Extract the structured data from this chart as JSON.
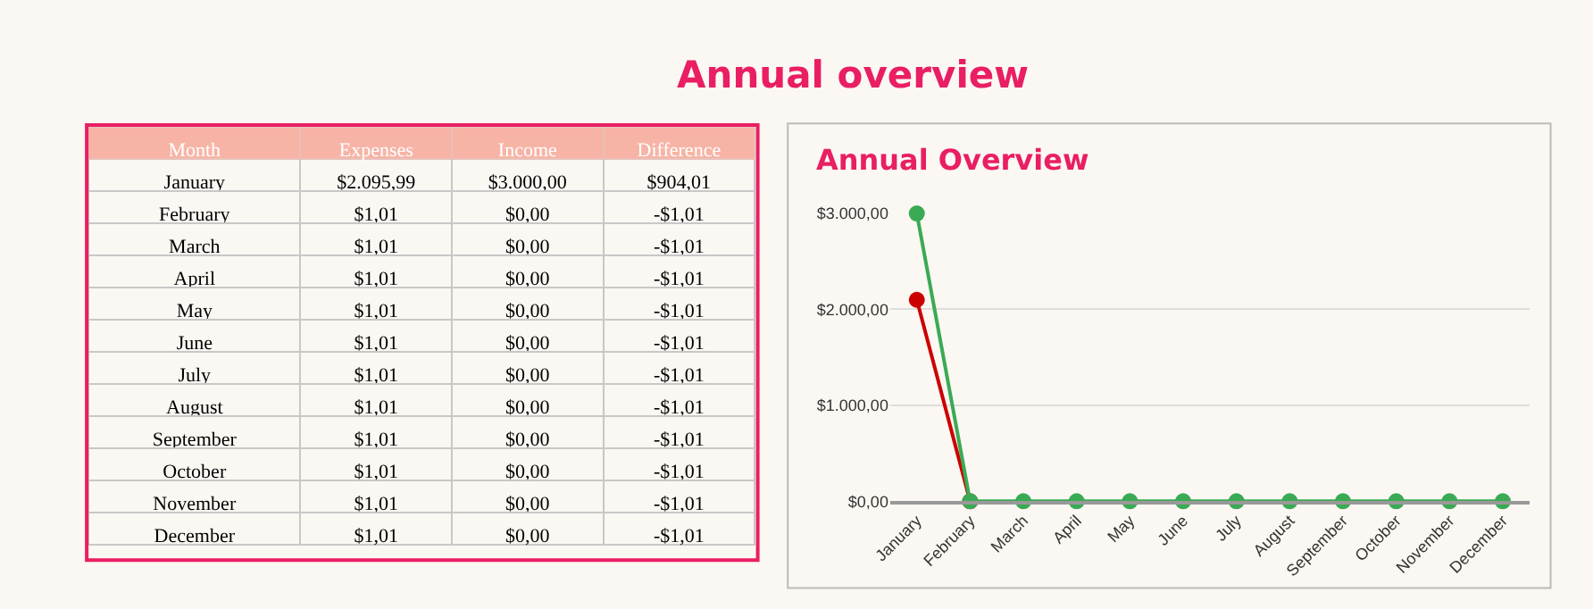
{
  "chart_data": [
    {
      "type": "other",
      "title": "Annual overview",
      "xlabel": "Month",
      "categories": [
        "January",
        "February",
        "March",
        "April",
        "May",
        "June",
        "July",
        "August",
        "September",
        "October",
        "November",
        "December"
      ],
      "series": [
        {
          "name": "Expenses",
          "values": [
            2095.99,
            1.01,
            1.01,
            1.01,
            1.01,
            1.01,
            1.01,
            1.01,
            1.01,
            1.01,
            1.01,
            1.01
          ],
          "value_labels": [
            "$2.095,99",
            "$1,01",
            "$1,01",
            "$1,01",
            "$1,01",
            "$1,01",
            "$1,01",
            "$1,01",
            "$1,01",
            "$1,01",
            "$1,01",
            "$1,01"
          ]
        },
        {
          "name": "Income",
          "values": [
            3000,
            0,
            0,
            0,
            0,
            0,
            0,
            0,
            0,
            0,
            0,
            0
          ],
          "value_labels": [
            "$3.000,00",
            "$0,00",
            "$0,00",
            "$0,00",
            "$0,00",
            "$0,00",
            "$0,00",
            "$0,00",
            "$0,00",
            "$0,00",
            "$0,00",
            "$0,00"
          ]
        },
        {
          "name": "Difference",
          "values": [
            904.01,
            -1.01,
            -1.01,
            -1.01,
            -1.01,
            -1.01,
            -1.01,
            -1.01,
            -1.01,
            -1.01,
            -1.01,
            -1.01
          ],
          "value_labels": [
            "$904,01",
            "-$1,01",
            "-$1,01",
            "-$1,01",
            "-$1,01",
            "-$1,01",
            "-$1,01",
            "-$1,01",
            "-$1,01",
            "-$1,01",
            "-$1,01",
            "-$1,01"
          ]
        }
      ]
    },
    {
      "type": "line",
      "title": "Annual Overview",
      "categories": [
        "January",
        "February",
        "March",
        "April",
        "May",
        "June",
        "July",
        "August",
        "September",
        "October",
        "November",
        "December"
      ],
      "series": [
        {
          "color": "#cc0000",
          "values": [
            2100,
            0,
            null,
            null,
            null,
            null,
            null,
            null,
            null,
            null,
            null,
            null
          ]
        },
        {
          "color": "#3aaa55",
          "values": [
            3000,
            0,
            0,
            0,
            0,
            0,
            0,
            0,
            0,
            0,
            0,
            0
          ]
        }
      ],
      "ylim": [
        0,
        3000
      ],
      "yticks": [
        {
          "value": 0,
          "label": "$0,00"
        },
        {
          "value": 1000,
          "label": "$1.000,00"
        },
        {
          "value": 2000,
          "label": "$2.000,00"
        },
        {
          "value": 3000,
          "label": "$3.000,00"
        }
      ],
      "grid": "y",
      "marker": "circle",
      "line_style": "solid"
    }
  ]
}
